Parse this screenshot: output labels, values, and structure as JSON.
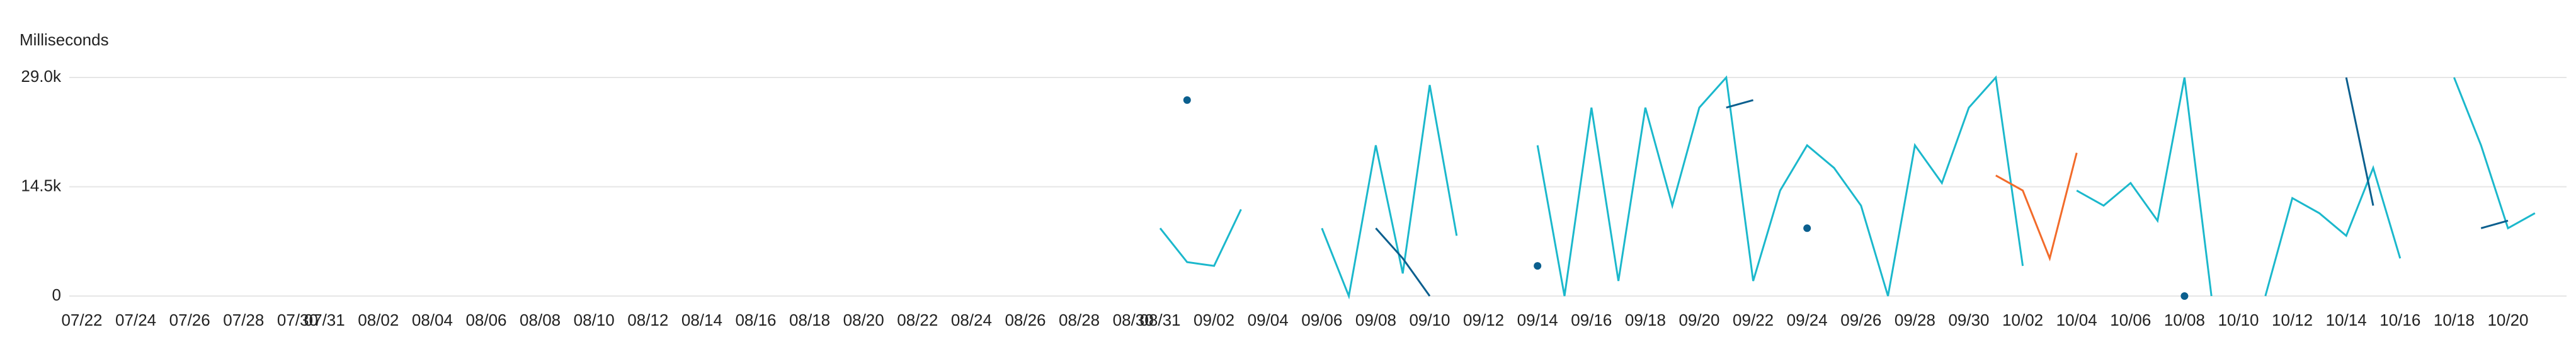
{
  "chart_data": {
    "type": "line",
    "y_label": "Milliseconds",
    "ylim": [
      0,
      29000
    ],
    "yticks": [
      {
        "value": 0,
        "label": "0"
      },
      {
        "value": 14500,
        "label": "14.5k"
      },
      {
        "value": 29000,
        "label": "29.0k"
      }
    ],
    "xlim": [
      "07/22",
      "10/22"
    ],
    "xticks": [
      "07/22",
      "07/24",
      "07/26",
      "07/28",
      "07/30",
      "07/31",
      "08/02",
      "08/04",
      "08/06",
      "08/08",
      "08/10",
      "08/12",
      "08/14",
      "08/16",
      "08/18",
      "08/20",
      "08/22",
      "08/24",
      "08/26",
      "08/28",
      "08/30",
      "08/31",
      "09/02",
      "09/04",
      "09/06",
      "09/08",
      "09/10",
      "09/12",
      "09/14",
      "09/16",
      "09/18",
      "09/20",
      "09/22",
      "09/24",
      "09/26",
      "09/28",
      "09/30",
      "10/02",
      "10/04",
      "10/06",
      "10/08",
      "10/10",
      "10/12",
      "10/14",
      "10/16",
      "10/18",
      "10/20"
    ],
    "grid": true,
    "x": [
      "08/30",
      "08/31",
      "09/01",
      "09/02",
      "09/03",
      "09/04",
      "09/05",
      "09/06",
      "09/07",
      "09/08",
      "09/09",
      "09/10",
      "09/11",
      "09/12",
      "09/13",
      "09/14",
      "09/15",
      "09/16",
      "09/17",
      "09/18",
      "09/19",
      "09/20",
      "09/21",
      "09/22",
      "09/23",
      "09/24",
      "09/25",
      "09/26",
      "09/27",
      "09/28",
      "09/29",
      "09/30",
      "10/01",
      "10/02",
      "10/03",
      "10/04",
      "10/05",
      "10/06",
      "10/07",
      "10/08",
      "10/09",
      "10/10",
      "10/11",
      "10/12",
      "10/13",
      "10/14",
      "10/15",
      "10/16",
      "10/17",
      "10/18",
      "10/19",
      "10/20",
      "10/21"
    ],
    "series": [
      {
        "color": "#1bb8cc",
        "values": [
          null,
          9000,
          4500,
          4000,
          11500,
          null,
          null,
          9000,
          0,
          20000,
          3000,
          28000,
          8000,
          null,
          null,
          20000,
          0,
          25000,
          2000,
          25000,
          12000,
          25000,
          29000,
          2000,
          14000,
          20000,
          17000,
          12000,
          0,
          20000,
          15000,
          25000,
          29000,
          4000,
          null,
          14000,
          12000,
          15000,
          10000,
          29000,
          0,
          null,
          0,
          13000,
          11000,
          8000,
          17000,
          5000,
          null,
          29000,
          20000,
          9000,
          11000
        ]
      },
      {
        "color": "#0b5f8e",
        "values": [
          null,
          null,
          26000,
          null,
          null,
          null,
          null,
          null,
          null,
          9000,
          5000,
          0,
          null,
          null,
          null,
          4000,
          null,
          null,
          null,
          null,
          null,
          null,
          25000,
          26000,
          null,
          9000,
          null,
          null,
          null,
          null,
          null,
          null,
          null,
          null,
          null,
          null,
          null,
          null,
          null,
          0,
          null,
          null,
          null,
          null,
          null,
          29000,
          12000,
          null,
          null,
          null,
          9000,
          10000,
          null
        ]
      },
      {
        "color": "#f26b2a",
        "values": [
          null,
          null,
          null,
          null,
          null,
          null,
          null,
          null,
          null,
          null,
          null,
          null,
          null,
          null,
          null,
          null,
          null,
          null,
          null,
          null,
          null,
          null,
          null,
          null,
          null,
          null,
          null,
          null,
          null,
          null,
          null,
          null,
          16000,
          14000,
          5000,
          19000,
          null,
          null,
          null,
          null,
          null,
          null,
          null,
          null,
          null,
          null,
          null,
          null,
          null,
          null,
          null,
          null,
          null
        ]
      }
    ]
  }
}
